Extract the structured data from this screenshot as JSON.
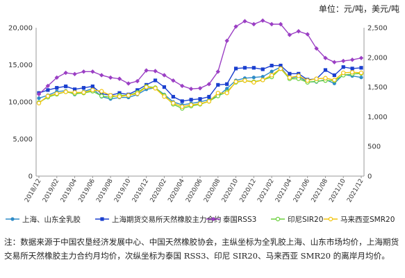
{
  "unit_label": "单位：元/吨，美元/吨",
  "note": "注：数据来源于中国农垦经济发展中心、中国天然橡胶协会，主纵坐标为全乳胶上海、山东市场均价，上海期货交易所天然橡胶主力合约月均价，次纵坐标为泰国 RSS3、印尼 SIR20、马来西亚 SMR20 的离岸月均价。",
  "chart_data": {
    "type": "line",
    "x": [
      "2018/12",
      "2019/01",
      "2019/02",
      "2019/03",
      "2019/04",
      "2019/05",
      "2019/06",
      "2019/07",
      "2019/08",
      "2019/09",
      "2019/10",
      "2019/11",
      "2019/12",
      "2020/01",
      "2020/02",
      "2020/03",
      "2020/04",
      "2020/05",
      "2020/06",
      "2020/07",
      "2020/08",
      "2020/09",
      "2020/10",
      "2020/11",
      "2020/12",
      "2021/01",
      "2021/02",
      "2021/03",
      "2021/04",
      "2021/05",
      "2021/06",
      "2021/07",
      "2021/08",
      "2021/09",
      "2021/10",
      "2021/11",
      "2021/12"
    ],
    "x_tick_labels": [
      "2018/12",
      "2019/02",
      "2019/04",
      "2019/06",
      "2019/08",
      "2019/10",
      "2019/12",
      "2020/02",
      "2020/04",
      "2020/06",
      "2020/08",
      "2020/10",
      "2020/12",
      "2021/02",
      "2021/04",
      "2021/06",
      "2021/08",
      "2021/10",
      "2021/12"
    ],
    "y_left": {
      "range": [
        0,
        20000
      ],
      "ticks": [
        "0",
        "5,000",
        "10,000",
        "15,000",
        "20,000"
      ]
    },
    "y_right": {
      "range": [
        0,
        2500
      ],
      "ticks": [
        "0",
        "500",
        "1,000",
        "1,500",
        "2,000",
        "2,500"
      ]
    },
    "grid": false,
    "legend_position": "bottom",
    "series": [
      {
        "name": "上海、山东全乳胶",
        "axis": "left",
        "color": "#2e8bc7",
        "marker": "circle-filled",
        "values": [
          10500,
          10900,
          11400,
          11500,
          11000,
          11400,
          11800,
          10700,
          10400,
          10600,
          10600,
          11000,
          11700,
          11900,
          11000,
          10000,
          9600,
          9800,
          10000,
          10300,
          10800,
          11800,
          12900,
          13200,
          13300,
          13400,
          14100,
          14700,
          13200,
          13400,
          12700,
          12700,
          13000,
          12500,
          13700,
          13500,
          13300
        ]
      },
      {
        "name": "上海期货交易所天然橡胶主力合约",
        "axis": "left",
        "color": "#1a3fcf",
        "marker": "square-filled",
        "values": [
          11200,
          11600,
          11900,
          12100,
          11700,
          11900,
          12100,
          11100,
          10900,
          11200,
          11000,
          11600,
          12300,
          12900,
          12000,
          10700,
          10100,
          10300,
          10400,
          10700,
          12300,
          12400,
          14500,
          14600,
          14600,
          14400,
          14900,
          14900,
          13800,
          13800,
          13000,
          13100,
          14300,
          13600,
          14700,
          14500,
          14600
        ]
      },
      {
        "name": "泰国RSS3",
        "axis": "right",
        "color": "#9b3fc4",
        "marker": "diamond-filled",
        "values": [
          1380,
          1520,
          1660,
          1740,
          1720,
          1760,
          1760,
          1700,
          1660,
          1640,
          1560,
          1600,
          1780,
          1770,
          1700,
          1610,
          1520,
          1470,
          1480,
          1550,
          1760,
          2280,
          2520,
          2610,
          2560,
          2620,
          2560,
          2560,
          2380,
          2440,
          2390,
          2150,
          1990,
          1920,
          1940,
          1960,
          1990
        ]
      },
      {
        "name": "印尼SIR20",
        "axis": "right",
        "color": "#6ad03c",
        "marker": "circle-hollow",
        "values": [
          1240,
          1330,
          1380,
          1420,
          1390,
          1400,
          1430,
          1350,
          1330,
          1360,
          1360,
          1410,
          1510,
          1490,
          1360,
          1210,
          1140,
          1180,
          1210,
          1260,
          1350,
          1420,
          1580,
          1610,
          1590,
          1620,
          1670,
          1810,
          1640,
          1640,
          1580,
          1600,
          1610,
          1610,
          1700,
          1720,
          1730
        ]
      },
      {
        "name": "马来西亚SMR20",
        "axis": "right",
        "color": "#f2c40c",
        "marker": "circle-hollow",
        "values": [
          1230,
          1350,
          1390,
          1420,
          1410,
          1410,
          1450,
          1430,
          1360,
          1340,
          1360,
          1390,
          1500,
          1480,
          1340,
          1230,
          1170,
          1200,
          1220,
          1260,
          1400,
          1400,
          1590,
          1610,
          1580,
          1620,
          1700,
          1810,
          1660,
          1690,
          1610,
          1640,
          1650,
          1620,
          1740,
          1750,
          1740
        ]
      }
    ]
  }
}
